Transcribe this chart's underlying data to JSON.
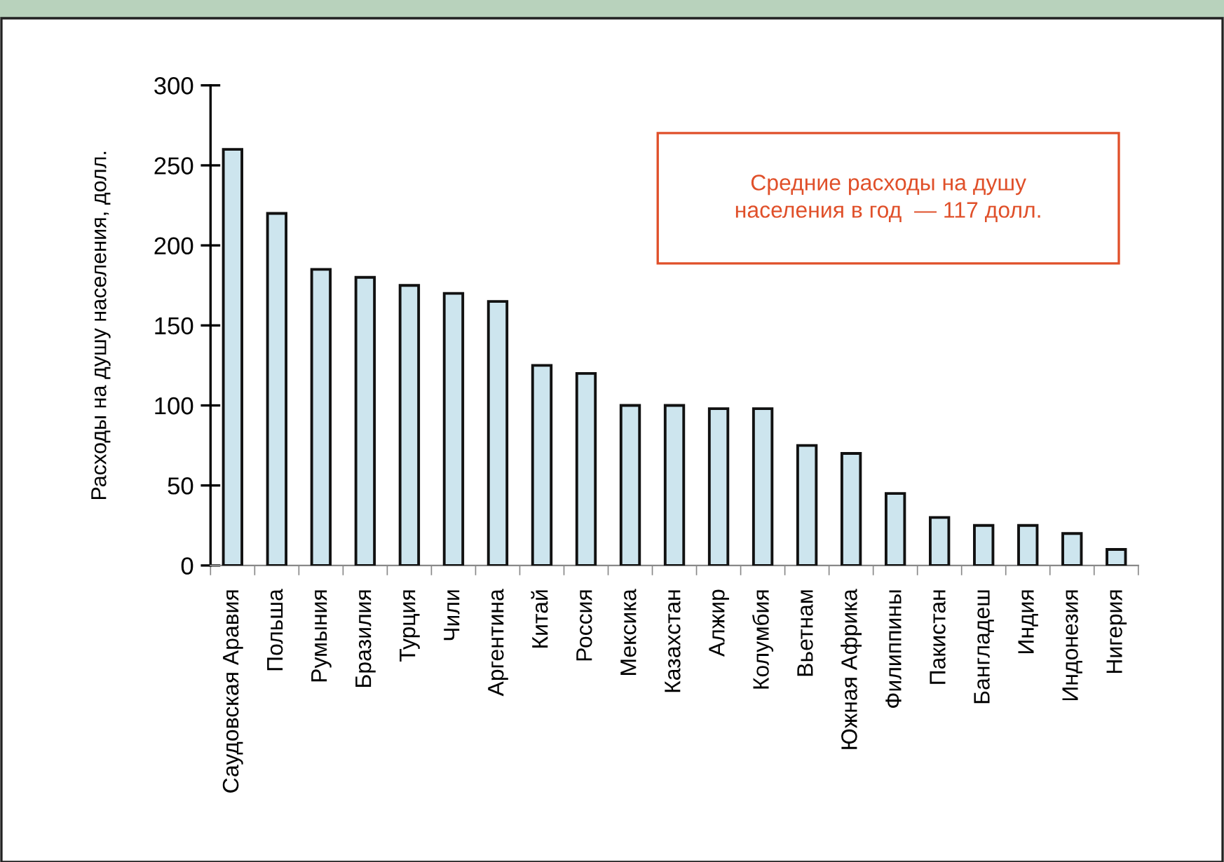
{
  "chart_data": {
    "type": "bar",
    "ylabel": "Расходы на душу населения, долл.",
    "categories": [
      "Саудовская Аравия",
      "Польша",
      "Румыния",
      "Бразилия",
      "Турция",
      "Чили",
      "Аргентина",
      "Китай",
      "Россия",
      "Мексика",
      "Казахстан",
      "Алжир",
      "Колумбия",
      "Вьетнам",
      "Южная Африка",
      "Филиппины",
      "Пакистан",
      "Бангладеш",
      "Индия",
      "Индонезия",
      "Нигерия"
    ],
    "values": [
      260,
      220,
      185,
      180,
      175,
      170,
      165,
      125,
      120,
      100,
      100,
      98,
      98,
      75,
      70,
      45,
      30,
      25,
      25,
      20,
      10
    ],
    "color": "#cde5ee",
    "ylim": [
      0,
      300
    ],
    "yticks": [
      0,
      50,
      100,
      150,
      200,
      250,
      300
    ],
    "annotations": [
      "Средние расходы на душу\nнаселения в год  — 117 долл."
    ]
  }
}
